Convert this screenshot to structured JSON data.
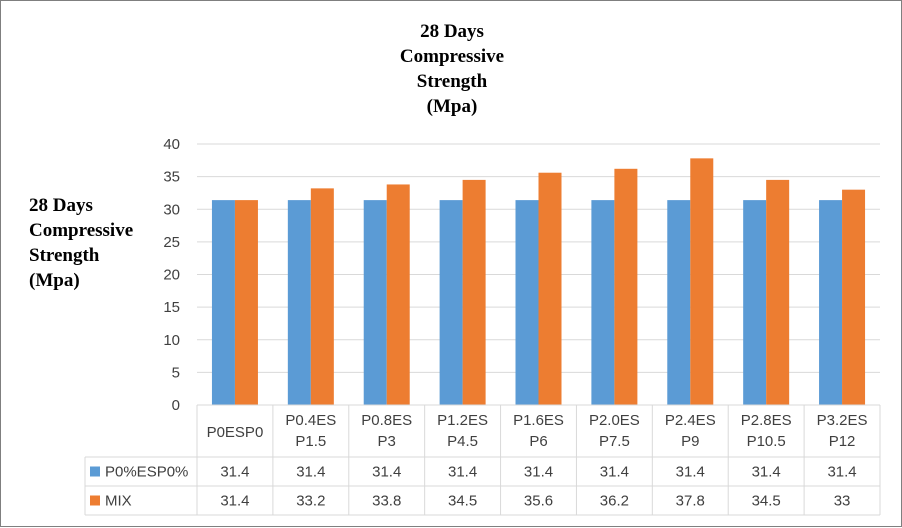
{
  "chart_data": {
    "type": "bar",
    "title": [
      "28 Days",
      "Compressive",
      "Strength",
      "(Mpa)"
    ],
    "ylabel": [
      "28 Days",
      "Compressive",
      "Strength",
      "(Mpa)"
    ],
    "ylim": [
      0,
      40
    ],
    "yticks": [
      0,
      5,
      10,
      15,
      20,
      25,
      30,
      35,
      40
    ],
    "grid": true,
    "legend": "data-table",
    "categories": [
      [
        "P0ESP0"
      ],
      [
        "P0.4ES",
        "P1.5"
      ],
      [
        "P0.8ES",
        "P3"
      ],
      [
        "P1.2ES",
        "P4.5"
      ],
      [
        "P1.6ES",
        "P6"
      ],
      [
        "P2.0ES",
        "P7.5"
      ],
      [
        "P2.4ES",
        "P9"
      ],
      [
        "P2.8ES",
        "P10.5"
      ],
      [
        "P3.2ES",
        "P12"
      ]
    ],
    "series": [
      {
        "name": "P0%ESP0%",
        "color": "#5b9bd5",
        "values": [
          31.4,
          31.4,
          31.4,
          31.4,
          31.4,
          31.4,
          31.4,
          31.4,
          31.4
        ],
        "labels": [
          "31.4",
          "31.4",
          "31.4",
          "31.4",
          "31.4",
          "31.4",
          "31.4",
          "31.4",
          "31.4"
        ]
      },
      {
        "name": "MIX",
        "color": "#ed7d31",
        "values": [
          31.4,
          33.2,
          33.8,
          34.5,
          35.6,
          36.2,
          37.8,
          34.5,
          33
        ],
        "labels": [
          "31.4",
          "33.2",
          "33.8",
          "34.5",
          "35.6",
          "36.2",
          "37.8",
          "34.5",
          "33"
        ]
      }
    ]
  }
}
